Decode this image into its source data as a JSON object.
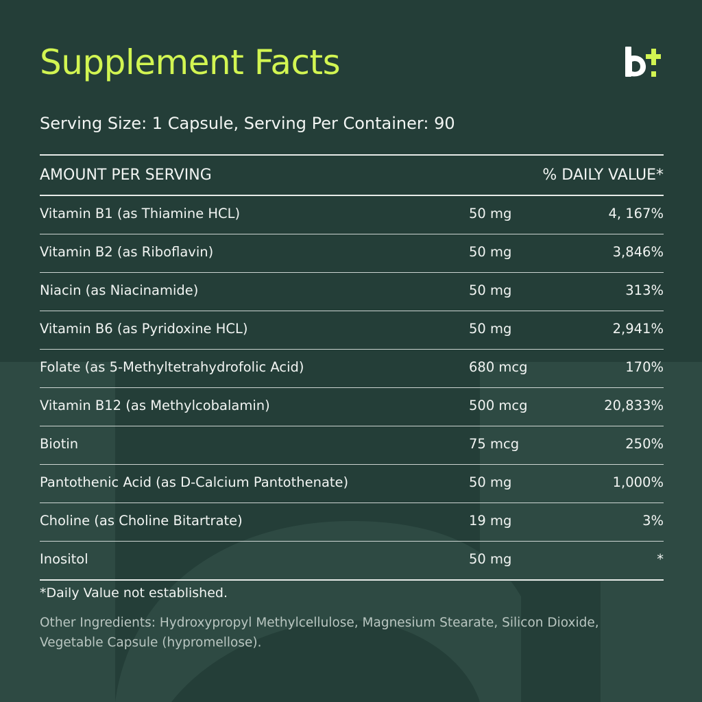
{
  "title": "Supplement Facts",
  "logo": {
    "icon": "brand-logo-icon",
    "glyph": "b",
    "accent_color": "#d2f552"
  },
  "serving": "Serving Size: 1 Capsule, Serving Per Container: 90",
  "header": {
    "left": "AMOUNT PER SERVING",
    "right": "% DAILY VALUE*"
  },
  "rows": [
    {
      "name": "Vitamin B1 (as Thiamine HCL)",
      "amount": "50 mg",
      "dv": "4, 167%"
    },
    {
      "name": "Vitamin B2 (as Riboflavin)",
      "amount": "50 mg",
      "dv": "3,846%"
    },
    {
      "name": "Niacin (as Niacinamide)",
      "amount": "50 mg",
      "dv": "313%"
    },
    {
      "name": "Vitamin B6 (as Pyridoxine HCL)",
      "amount": "50 mg",
      "dv": "2,941%"
    },
    {
      "name": "Folate (as 5-Methyltetrahydrofolic Acid)",
      "amount": "680 mcg",
      "dv": "170%"
    },
    {
      "name": "Vitamin B12 (as Methylcobalamin)",
      "amount": "500 mcg",
      "dv": "20,833%"
    },
    {
      "name": "Biotin",
      "amount": "75 mcg",
      "dv": "250%"
    },
    {
      "name": "Pantothenic Acid (as D-Calcium Pantothenate)",
      "amount": "50 mg",
      "dv": "1,000%"
    },
    {
      "name": "Choline (as Choline Bitartrate)",
      "amount": "19 mg",
      "dv": "3%"
    },
    {
      "name": "Inositol",
      "amount": "50 mg",
      "dv": "*"
    }
  ],
  "footnote": "*Daily Value not established.",
  "other_ingredients": "Other Ingredients: Hydroxypropyl Methylcellulose, Magnesium Stearate, Silicon Dioxide, Vegetable Capsule (hypromellose).",
  "colors": {
    "background": "#243e38",
    "accent": "#d2f552",
    "watermark": "#2e4a43"
  }
}
